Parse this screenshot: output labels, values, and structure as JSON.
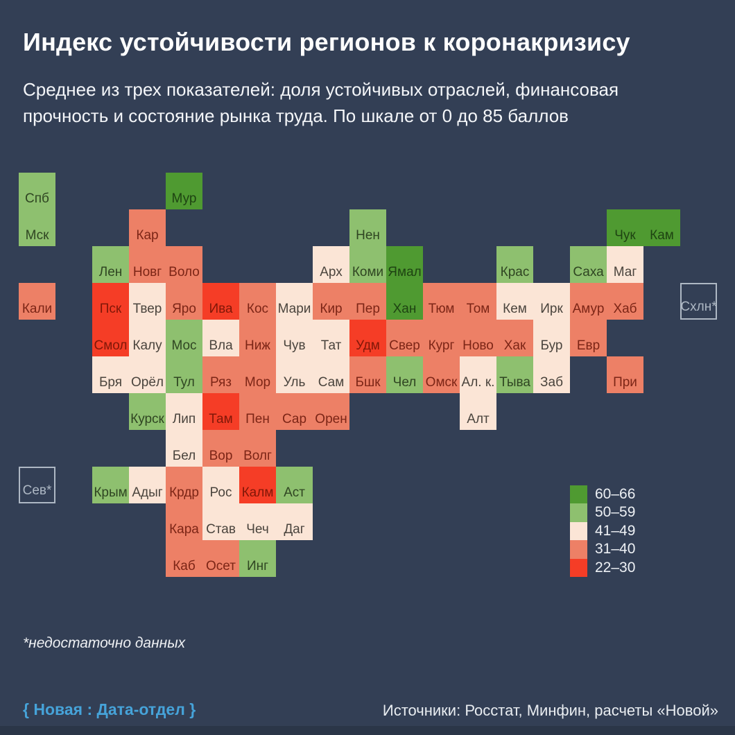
{
  "header": {
    "title": "Индекс устойчивости регионов к коронакризису",
    "subtitle": "Среднее из трех показателей: доля устойчивых отраслей, финансовая прочность и состояние рынка труда. По шкале от 0 до 85 баллов"
  },
  "footer": {
    "footnote": "*недостаточно данных",
    "credit": "{ Новая : Дата-отдел }",
    "sources": "Источники: Росстат, Минфин, расчеты «Новой»"
  },
  "colors": {
    "background": "#333f55",
    "bottom_strip": "#2b3648",
    "credit_accent": "#46a3d9",
    "nodata_outline": "#aeb8c4",
    "tile_label": {
      "g2": "#1e4312",
      "g1": "#2f4522",
      "c": "#4a443d",
      "s": "#7c2516",
      "r": "#801708"
    }
  },
  "chart_data": {
    "type": "heatmap",
    "subtype": "tile-grid-cartogram",
    "title": "Индекс устойчивости регионов к коронакризису",
    "scale_note": "По шкале от 0 до 85 баллов",
    "legend_position": "bottom-right",
    "legend": [
      {
        "key": "g2",
        "label": "60–66",
        "color": "#4f9a31"
      },
      {
        "key": "g1",
        "label": "50–59",
        "color": "#8ec06f"
      },
      {
        "key": "c",
        "label": "41–49",
        "color": "#fbe5d6"
      },
      {
        "key": "s",
        "label": "31–40",
        "color": "#ed8066"
      },
      {
        "key": "r",
        "label": "22–30",
        "color": "#f53d26"
      }
    ],
    "regions": [
      {
        "label": "Спб",
        "col": 0,
        "row": 0,
        "band": "g1"
      },
      {
        "label": "Мур",
        "col": 4,
        "row": 0,
        "band": "g2"
      },
      {
        "label": "Мск",
        "col": 0,
        "row": 1,
        "band": "g1"
      },
      {
        "label": "Кар",
        "col": 3,
        "row": 1,
        "band": "s"
      },
      {
        "label": "Нен",
        "col": 9,
        "row": 1,
        "band": "g1"
      },
      {
        "label": "Чук",
        "col": 16,
        "row": 1,
        "band": "g2"
      },
      {
        "label": "Кам",
        "col": 17,
        "row": 1,
        "band": "g2"
      },
      {
        "label": "Лен",
        "col": 2,
        "row": 2,
        "band": "g1"
      },
      {
        "label": "Новг",
        "col": 3,
        "row": 2,
        "band": "s"
      },
      {
        "label": "Воло",
        "col": 4,
        "row": 2,
        "band": "s"
      },
      {
        "label": "Арх",
        "col": 8,
        "row": 2,
        "band": "c"
      },
      {
        "label": "Коми",
        "col": 9,
        "row": 2,
        "band": "g1"
      },
      {
        "label": "Ямал",
        "col": 10,
        "row": 2,
        "band": "g2"
      },
      {
        "label": "Крас",
        "col": 13,
        "row": 2,
        "band": "g1"
      },
      {
        "label": "Саха",
        "col": 15,
        "row": 2,
        "band": "g1"
      },
      {
        "label": "Маг",
        "col": 16,
        "row": 2,
        "band": "c"
      },
      {
        "label": "Кали",
        "col": 0,
        "row": 3,
        "band": "s"
      },
      {
        "label": "Пск",
        "col": 2,
        "row": 3,
        "band": "r"
      },
      {
        "label": "Твер",
        "col": 3,
        "row": 3,
        "band": "c"
      },
      {
        "label": "Яро",
        "col": 4,
        "row": 3,
        "band": "s"
      },
      {
        "label": "Ива",
        "col": 5,
        "row": 3,
        "band": "r"
      },
      {
        "label": "Кос",
        "col": 6,
        "row": 3,
        "band": "s"
      },
      {
        "label": "Мари",
        "col": 7,
        "row": 3,
        "band": "c"
      },
      {
        "label": "Кир",
        "col": 8,
        "row": 3,
        "band": "s"
      },
      {
        "label": "Пер",
        "col": 9,
        "row": 3,
        "band": "s"
      },
      {
        "label": "Хан",
        "col": 10,
        "row": 3,
        "band": "g2"
      },
      {
        "label": "Тюм",
        "col": 11,
        "row": 3,
        "band": "s"
      },
      {
        "label": "Том",
        "col": 12,
        "row": 3,
        "band": "s"
      },
      {
        "label": "Кем",
        "col": 13,
        "row": 3,
        "band": "c"
      },
      {
        "label": "Ирк",
        "col": 14,
        "row": 3,
        "band": "c"
      },
      {
        "label": "Амур",
        "col": 15,
        "row": 3,
        "band": "s"
      },
      {
        "label": "Хаб",
        "col": 16,
        "row": 3,
        "band": "s"
      },
      {
        "label": "Смол",
        "col": 2,
        "row": 4,
        "band": "r"
      },
      {
        "label": "Калу",
        "col": 3,
        "row": 4,
        "band": "c"
      },
      {
        "label": "Мос",
        "col": 4,
        "row": 4,
        "band": "g1"
      },
      {
        "label": "Вла",
        "col": 5,
        "row": 4,
        "band": "c"
      },
      {
        "label": "Ниж",
        "col": 6,
        "row": 4,
        "band": "s"
      },
      {
        "label": "Чув",
        "col": 7,
        "row": 4,
        "band": "c"
      },
      {
        "label": "Тат",
        "col": 8,
        "row": 4,
        "band": "c"
      },
      {
        "label": "Удм",
        "col": 9,
        "row": 4,
        "band": "r"
      },
      {
        "label": "Свер",
        "col": 10,
        "row": 4,
        "band": "s"
      },
      {
        "label": "Кург",
        "col": 11,
        "row": 4,
        "band": "s"
      },
      {
        "label": "Ново",
        "col": 12,
        "row": 4,
        "band": "s"
      },
      {
        "label": "Хак",
        "col": 13,
        "row": 4,
        "band": "s"
      },
      {
        "label": "Бур",
        "col": 14,
        "row": 4,
        "band": "c"
      },
      {
        "label": "Евр",
        "col": 15,
        "row": 4,
        "band": "s"
      },
      {
        "label": "Бря",
        "col": 2,
        "row": 5,
        "band": "c"
      },
      {
        "label": "Орёл",
        "col": 3,
        "row": 5,
        "band": "c"
      },
      {
        "label": "Тул",
        "col": 4,
        "row": 5,
        "band": "g1"
      },
      {
        "label": "Ряз",
        "col": 5,
        "row": 5,
        "band": "s"
      },
      {
        "label": "Мор",
        "col": 6,
        "row": 5,
        "band": "s"
      },
      {
        "label": "Уль",
        "col": 7,
        "row": 5,
        "band": "c"
      },
      {
        "label": "Сам",
        "col": 8,
        "row": 5,
        "band": "c"
      },
      {
        "label": "Бшк",
        "col": 9,
        "row": 5,
        "band": "s"
      },
      {
        "label": "Чел",
        "col": 10,
        "row": 5,
        "band": "g1"
      },
      {
        "label": "Омск",
        "col": 11,
        "row": 5,
        "band": "s"
      },
      {
        "label": "Ал. к.",
        "col": 12,
        "row": 5,
        "band": "c"
      },
      {
        "label": "Тыва",
        "col": 13,
        "row": 5,
        "band": "g1"
      },
      {
        "label": "Заб",
        "col": 14,
        "row": 5,
        "band": "c"
      },
      {
        "label": "При",
        "col": 16,
        "row": 5,
        "band": "s"
      },
      {
        "label": "Курск",
        "col": 3,
        "row": 6,
        "band": "g1"
      },
      {
        "label": "Лип",
        "col": 4,
        "row": 6,
        "band": "c"
      },
      {
        "label": "Там",
        "col": 5,
        "row": 6,
        "band": "r"
      },
      {
        "label": "Пен",
        "col": 6,
        "row": 6,
        "band": "s"
      },
      {
        "label": "Сар",
        "col": 7,
        "row": 6,
        "band": "s"
      },
      {
        "label": "Орен",
        "col": 8,
        "row": 6,
        "band": "s"
      },
      {
        "label": "Алт",
        "col": 12,
        "row": 6,
        "band": "c"
      },
      {
        "label": "Бел",
        "col": 4,
        "row": 7,
        "band": "c"
      },
      {
        "label": "Вор",
        "col": 5,
        "row": 7,
        "band": "s"
      },
      {
        "label": "Волг",
        "col": 6,
        "row": 7,
        "band": "s"
      },
      {
        "label": "Крым",
        "col": 2,
        "row": 8,
        "band": "g1"
      },
      {
        "label": "Адыг",
        "col": 3,
        "row": 8,
        "band": "c"
      },
      {
        "label": "Крдр",
        "col": 4,
        "row": 8,
        "band": "s"
      },
      {
        "label": "Рос",
        "col": 5,
        "row": 8,
        "band": "c"
      },
      {
        "label": "Калм",
        "col": 6,
        "row": 8,
        "band": "r"
      },
      {
        "label": "Аст",
        "col": 7,
        "row": 8,
        "band": "g1"
      },
      {
        "label": "Кара",
        "col": 4,
        "row": 9,
        "band": "s"
      },
      {
        "label": "Став",
        "col": 5,
        "row": 9,
        "band": "c"
      },
      {
        "label": "Чеч",
        "col": 6,
        "row": 9,
        "band": "c"
      },
      {
        "label": "Даг",
        "col": 7,
        "row": 9,
        "band": "c"
      },
      {
        "label": "Каб",
        "col": 4,
        "row": 10,
        "band": "s"
      },
      {
        "label": "Осет",
        "col": 5,
        "row": 10,
        "band": "s"
      },
      {
        "label": "Инг",
        "col": 6,
        "row": 10,
        "band": "g1"
      }
    ],
    "no_data_regions": [
      {
        "label": "Схлн*",
        "col": 18,
        "row": 3
      },
      {
        "label": "Сев*",
        "col": 0,
        "row": 8
      }
    ],
    "no_data_note": "*недостаточно данных"
  }
}
